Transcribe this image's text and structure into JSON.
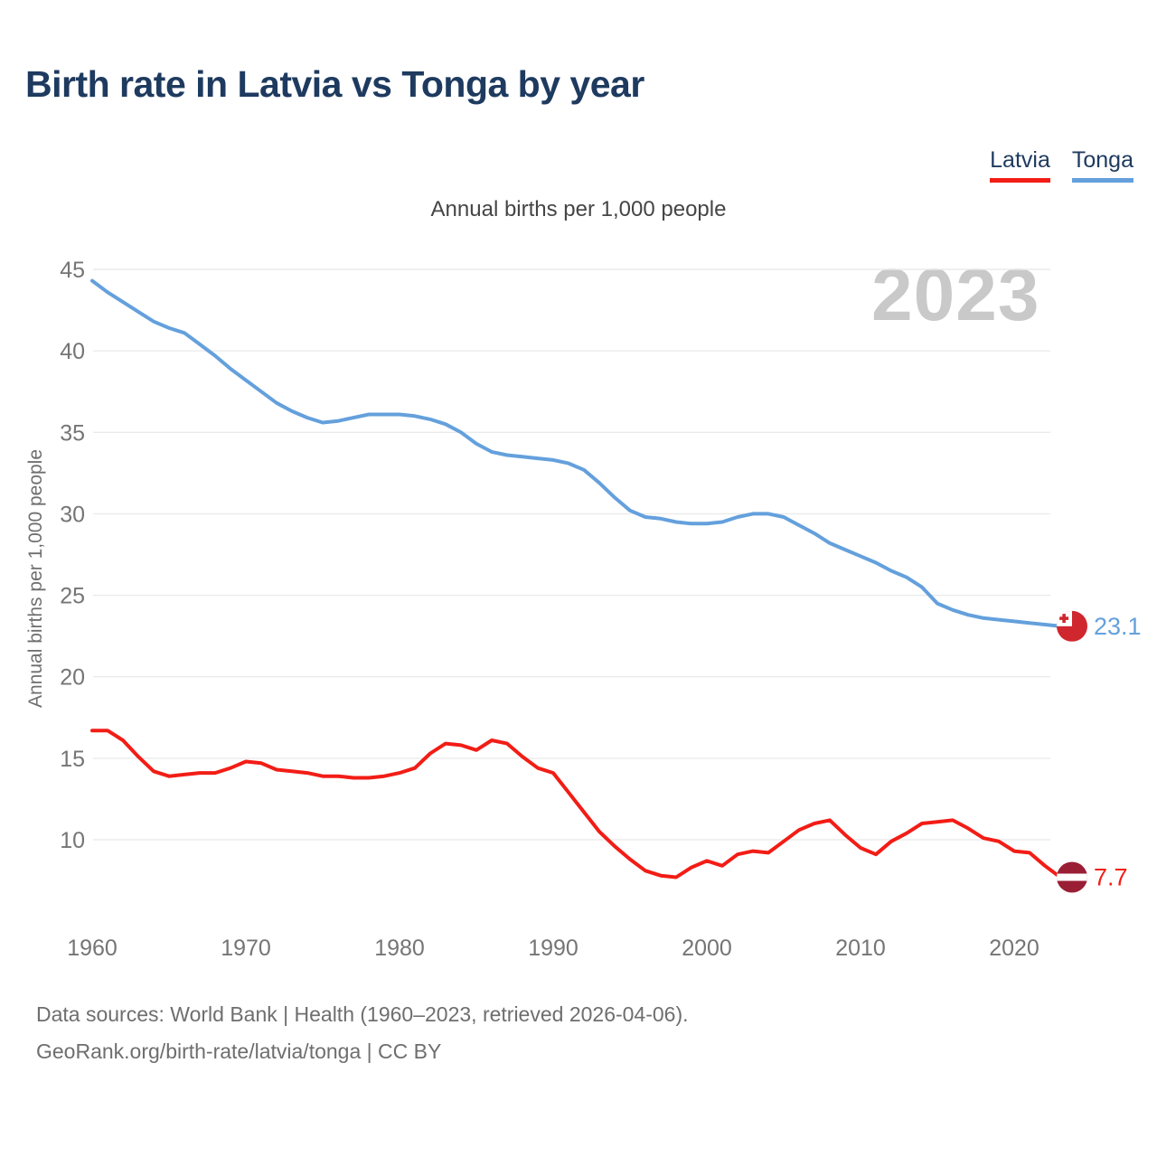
{
  "header": {
    "title": "Birth rate in Latvia vs Tonga by year"
  },
  "legend": {
    "items": [
      {
        "label": "Latvia",
        "color": "#f21d16"
      },
      {
        "label": "Tonga",
        "color": "#64a0dc"
      }
    ]
  },
  "footer": {
    "line1": "Data sources: World Bank | Health (1960–2023, retrieved 2026-04-06).",
    "line2": "GeoRank.org/birth-rate/latvia/tonga | CC BY"
  },
  "chart_data": {
    "type": "line",
    "title": "Birth rate in Latvia vs Tonga by year",
    "subtitle": "Annual births per 1,000 people",
    "ylabel": "Annual births per 1,000 people",
    "watermark": "2023",
    "grid": true,
    "legend_position": "top-right",
    "xticks": [
      1960,
      1970,
      1980,
      1990,
      2000,
      2010,
      2020
    ],
    "yticks": [
      10,
      15,
      20,
      25,
      30,
      35,
      40,
      45
    ],
    "ylim": [
      7,
      46
    ],
    "years": [
      1960,
      1961,
      1962,
      1963,
      1964,
      1965,
      1966,
      1967,
      1968,
      1969,
      1970,
      1971,
      1972,
      1973,
      1974,
      1975,
      1976,
      1977,
      1978,
      1979,
      1980,
      1981,
      1982,
      1983,
      1984,
      1985,
      1986,
      1987,
      1988,
      1989,
      1990,
      1991,
      1992,
      1993,
      1994,
      1995,
      1996,
      1997,
      1998,
      1999,
      2000,
      2001,
      2002,
      2003,
      2004,
      2005,
      2006,
      2007,
      2008,
      2009,
      2010,
      2011,
      2012,
      2013,
      2014,
      2015,
      2016,
      2017,
      2018,
      2019,
      2020,
      2021,
      2022,
      2023
    ],
    "series": [
      {
        "name": "Tonga",
        "color": "#64a0dc",
        "end_label": "23.1",
        "flag": "tonga-flag-icon",
        "flag_colors": {
          "red": "#d0262e",
          "white": "#ffffff"
        },
        "values": [
          44.3,
          43.6,
          43.0,
          42.4,
          41.8,
          41.4,
          41.1,
          40.4,
          39.7,
          38.9,
          38.2,
          37.5,
          36.8,
          36.3,
          35.9,
          35.6,
          35.7,
          35.9,
          36.1,
          36.1,
          36.1,
          36.0,
          35.8,
          35.5,
          35.0,
          34.3,
          33.8,
          33.6,
          33.5,
          33.4,
          33.3,
          33.1,
          32.7,
          31.9,
          31.0,
          30.2,
          29.8,
          29.7,
          29.5,
          29.4,
          29.4,
          29.5,
          29.8,
          30.0,
          30.0,
          29.8,
          29.3,
          28.8,
          28.2,
          27.8,
          27.4,
          27.0,
          26.5,
          26.1,
          25.5,
          24.5,
          24.1,
          23.8,
          23.6,
          23.5,
          23.4,
          23.3,
          23.2,
          23.1
        ]
      },
      {
        "name": "Latvia",
        "color": "#f21d16",
        "end_label": "7.7",
        "flag": "latvia-flag-icon",
        "flag_colors": {
          "carmine": "#9a1e34",
          "white": "#ffffff"
        },
        "values": [
          16.7,
          16.7,
          16.1,
          15.1,
          14.2,
          13.9,
          14.0,
          14.1,
          14.1,
          14.4,
          14.8,
          14.7,
          14.3,
          14.2,
          14.1,
          13.9,
          13.9,
          13.8,
          13.8,
          13.9,
          14.1,
          14.4,
          15.3,
          15.9,
          15.8,
          15.5,
          16.1,
          15.9,
          15.1,
          14.4,
          14.1,
          12.9,
          11.7,
          10.5,
          9.6,
          8.8,
          8.1,
          7.8,
          7.7,
          8.3,
          8.7,
          8.4,
          9.1,
          9.3,
          9.2,
          9.9,
          10.6,
          11.0,
          11.2,
          10.3,
          9.5,
          9.1,
          9.9,
          10.4,
          11.0,
          11.1,
          11.2,
          10.7,
          10.1,
          9.9,
          9.3,
          9.2,
          8.4,
          7.7
        ]
      }
    ]
  }
}
